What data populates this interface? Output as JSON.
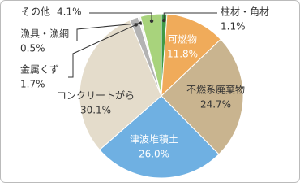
{
  "chart_data": {
    "type": "pie",
    "categories": [
      "柱材・角材",
      "可燃物",
      "不燃系廃棄物",
      "津波堆積土",
      "コンクリートがら",
      "金属くず",
      "漁具・漁網",
      "その他"
    ],
    "values": [
      1.1,
      11.8,
      24.7,
      26.0,
      30.1,
      1.7,
      0.5,
      4.1
    ],
    "value_labels": [
      "1.1%",
      "11.8%",
      "24.7%",
      "26.0%",
      "30.1%",
      "1.7%",
      "0.5%",
      "4.1%"
    ],
    "colors": [
      "#3f9a46",
      "#f0ab5a",
      "#c9b48f",
      "#6fb0e2",
      "#e4dccb",
      "#b3b3b3",
      "#f4f4f4",
      "#a8d37c"
    ]
  }
}
